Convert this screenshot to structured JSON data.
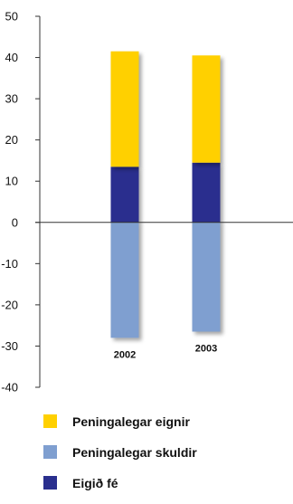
{
  "chart_data": {
    "type": "bar",
    "stacked": true,
    "categories": [
      "2002",
      "2003"
    ],
    "series": [
      {
        "name": "Peningalegar eignir",
        "values": [
          41.5,
          40.5
        ],
        "color": "#FFD000"
      },
      {
        "name": "Peningalegar skuldir",
        "values": [
          -28,
          -26.5
        ],
        "color": "#7F9FD0"
      },
      {
        "name": "Eigið fé",
        "values": [
          13.5,
          14.5
        ],
        "color": "#2A2F8E"
      }
    ],
    "ylim": [
      -40,
      50
    ],
    "yticks": [
      "50",
      "40",
      "30",
      "20",
      "10",
      "0",
      "-10",
      "-20",
      "-30",
      "-40"
    ],
    "grid": false,
    "legend_position": "bottom",
    "title": "",
    "xlabel": "",
    "ylabel": ""
  }
}
